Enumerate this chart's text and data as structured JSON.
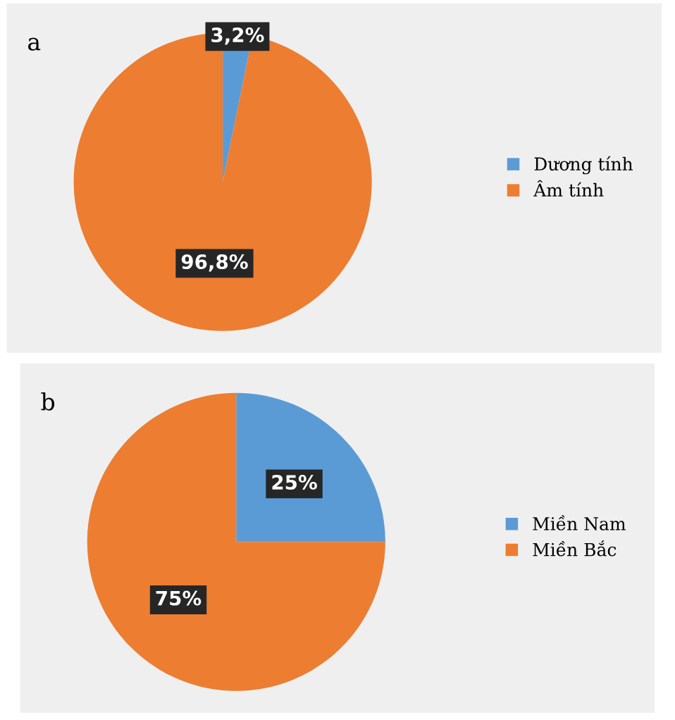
{
  "chart_data": [
    {
      "type": "pie",
      "title": "a",
      "categories": [
        "Dương tính",
        "Âm tính"
      ],
      "values": [
        3.2,
        96.8
      ],
      "colors": [
        "#5b9bd5",
        "#ed7d31"
      ],
      "value_labels": [
        "3,2%",
        "96,8%"
      ],
      "legend": "right"
    },
    {
      "type": "pie",
      "title": "b",
      "categories": [
        "Miền Nam",
        "Miền Bắc"
      ],
      "values": [
        25,
        75
      ],
      "colors": [
        "#5b9bd5",
        "#ed7d31"
      ],
      "value_labels": [
        "25%",
        "75%"
      ],
      "legend": "right"
    }
  ]
}
